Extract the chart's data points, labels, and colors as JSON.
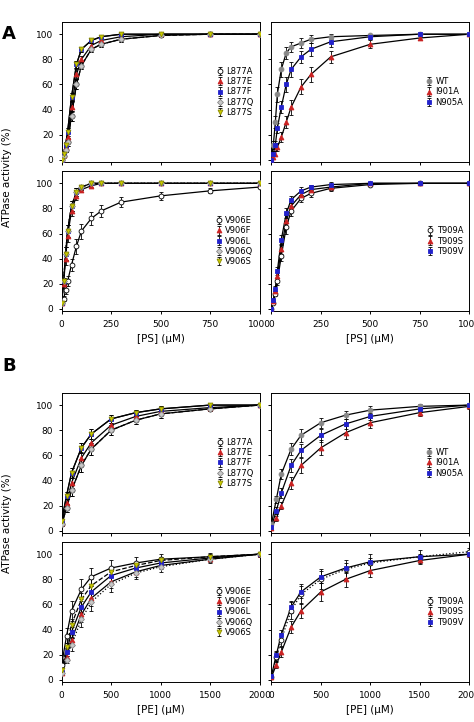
{
  "xlabel_PS": "[PS] (μM)",
  "xlabel_PE": "[PE] (μM)",
  "ylabel": "ATPase activity (%)",
  "xlim_PS": [
    0,
    1000
  ],
  "xlim_PE": [
    0,
    2000
  ],
  "ylim": [
    -2,
    110
  ],
  "yticks": [
    0,
    20,
    40,
    60,
    80,
    100
  ],
  "PS_x": [
    0,
    10,
    20,
    30,
    50,
    75,
    100,
    150,
    200,
    300,
    500,
    750,
    1000
  ],
  "PE_x": [
    0,
    50,
    100,
    200,
    300,
    500,
    750,
    1000,
    1500,
    2000
  ],
  "A_top_left": {
    "label": [
      "L877A",
      "L877E",
      "L877F",
      "L877Q",
      "L877S"
    ],
    "markers": [
      "o",
      "^",
      "s",
      "D",
      "v"
    ],
    "facecolors": [
      "white",
      "#cc2222",
      "#2222cc",
      "#c8c8c8",
      "#cccc00"
    ],
    "edgecolors": [
      "black",
      "#cc2222",
      "#2222cc",
      "#888888",
      "#888800"
    ],
    "linestyles": [
      "-",
      "-",
      "-",
      "--",
      "-"
    ],
    "data": [
      [
        0,
        3,
        8,
        14,
        35,
        60,
        75,
        88,
        92,
        96,
        99,
        100,
        100
      ],
      [
        0,
        4,
        10,
        18,
        42,
        68,
        80,
        91,
        95,
        98,
        100,
        100,
        100
      ],
      [
        0,
        5,
        12,
        22,
        50,
        76,
        88,
        95,
        98,
        100,
        100,
        100,
        100
      ],
      [
        0,
        3,
        8,
        14,
        35,
        60,
        75,
        88,
        92,
        96,
        99,
        100,
        100
      ],
      [
        0,
        5,
        12,
        22,
        50,
        76,
        88,
        95,
        98,
        100,
        100,
        100,
        100
      ]
    ],
    "yerr": [
      [
        0,
        1,
        2,
        3,
        4,
        4,
        3,
        2,
        2,
        2,
        1,
        1,
        1
      ],
      [
        0,
        1,
        2,
        3,
        4,
        4,
        3,
        2,
        2,
        2,
        1,
        1,
        1
      ],
      [
        0,
        1,
        2,
        3,
        3,
        3,
        2,
        2,
        1,
        1,
        1,
        1,
        1
      ],
      [
        0,
        1,
        2,
        3,
        4,
        4,
        3,
        2,
        2,
        2,
        1,
        1,
        1
      ],
      [
        0,
        1,
        2,
        3,
        3,
        3,
        2,
        2,
        1,
        1,
        1,
        1,
        1
      ]
    ]
  },
  "A_top_right": {
    "label": [
      "WT",
      "I901A",
      "N905A"
    ],
    "markers": [
      "o",
      "^",
      "s"
    ],
    "facecolors": [
      "#888888",
      "#cc2222",
      "#2222cc"
    ],
    "edgecolors": [
      "#888888",
      "#cc2222",
      "#2222cc"
    ],
    "linestyles": [
      "-",
      "-",
      "-"
    ],
    "data": [
      [
        0,
        12,
        30,
        52,
        72,
        85,
        90,
        93,
        96,
        98,
        99,
        100,
        100
      ],
      [
        0,
        2,
        5,
        10,
        18,
        30,
        42,
        58,
        68,
        82,
        92,
        97,
        100
      ],
      [
        0,
        5,
        12,
        25,
        42,
        60,
        72,
        82,
        88,
        94,
        98,
        100,
        100
      ]
    ],
    "yerr": [
      [
        0,
        3,
        5,
        6,
        6,
        5,
        4,
        4,
        3,
        2,
        1,
        1,
        1
      ],
      [
        0,
        1,
        2,
        3,
        4,
        5,
        6,
        6,
        6,
        5,
        3,
        2,
        1
      ],
      [
        0,
        2,
        3,
        4,
        5,
        6,
        6,
        5,
        5,
        4,
        2,
        1,
        1
      ]
    ]
  },
  "A_bot_left": {
    "label": [
      "V906E",
      "V906F",
      "V906L",
      "V906Q",
      "V906S"
    ],
    "markers": [
      "o",
      "^",
      "s",
      "D",
      "v"
    ],
    "facecolors": [
      "white",
      "#cc2222",
      "#2222cc",
      "#c8c8c8",
      "#cccc00"
    ],
    "edgecolors": [
      "black",
      "#cc2222",
      "#2222cc",
      "#888888",
      "#888800"
    ],
    "linestyles": [
      "-",
      "-",
      "-",
      ":",
      "--"
    ],
    "data": [
      [
        5,
        8,
        15,
        22,
        35,
        50,
        62,
        72,
        78,
        85,
        90,
        94,
        97
      ],
      [
        5,
        20,
        40,
        58,
        78,
        90,
        95,
        98,
        100,
        100,
        100,
        100,
        100
      ],
      [
        5,
        22,
        44,
        62,
        82,
        93,
        97,
        100,
        100,
        100,
        100,
        100,
        100
      ],
      [
        5,
        22,
        44,
        62,
        82,
        93,
        97,
        100,
        100,
        100,
        100,
        100,
        100
      ],
      [
        5,
        22,
        44,
        62,
        82,
        93,
        97,
        100,
        100,
        100,
        100,
        100,
        100
      ]
    ],
    "yerr": [
      [
        1,
        2,
        3,
        4,
        5,
        6,
        6,
        5,
        5,
        4,
        3,
        2,
        1
      ],
      [
        1,
        3,
        5,
        5,
        4,
        3,
        2,
        1,
        1,
        1,
        1,
        1,
        1
      ],
      [
        1,
        3,
        5,
        5,
        4,
        3,
        2,
        1,
        1,
        1,
        1,
        1,
        1
      ],
      [
        1,
        3,
        5,
        5,
        4,
        3,
        2,
        1,
        1,
        1,
        1,
        1,
        1
      ],
      [
        1,
        3,
        5,
        5,
        4,
        3,
        2,
        1,
        1,
        1,
        1,
        1,
        1
      ]
    ]
  },
  "A_bot_right": {
    "label": [
      "T909A",
      "T909S",
      "T909V"
    ],
    "markers": [
      "o",
      "^",
      "s"
    ],
    "facecolors": [
      "white",
      "#cc2222",
      "#2222cc"
    ],
    "edgecolors": [
      "black",
      "#cc2222",
      "#2222cc"
    ],
    "linestyles": [
      "-",
      "-",
      "-"
    ],
    "data": [
      [
        0,
        5,
        12,
        22,
        42,
        65,
        78,
        88,
        92,
        96,
        99,
        100,
        100
      ],
      [
        0,
        6,
        14,
        26,
        48,
        70,
        82,
        91,
        95,
        97,
        100,
        100,
        100
      ],
      [
        0,
        7,
        16,
        30,
        55,
        76,
        87,
        94,
        97,
        99,
        100,
        100,
        100
      ]
    ],
    "yerr": [
      [
        0,
        1,
        2,
        3,
        4,
        5,
        4,
        3,
        3,
        2,
        1,
        1,
        1
      ],
      [
        0,
        1,
        2,
        3,
        4,
        5,
        4,
        3,
        3,
        2,
        1,
        1,
        1
      ],
      [
        0,
        1,
        2,
        3,
        4,
        4,
        3,
        3,
        2,
        2,
        1,
        1,
        1
      ]
    ]
  },
  "B_top_left": {
    "label": [
      "L877A",
      "L877E",
      "L877F",
      "L877Q",
      "L877S"
    ],
    "markers": [
      "o",
      "^",
      "s",
      "D",
      "v"
    ],
    "facecolors": [
      "white",
      "#cc2222",
      "#2222cc",
      "#c8c8c8",
      "#cccc00"
    ],
    "edgecolors": [
      "black",
      "#cc2222",
      "#2222cc",
      "#888888",
      "#888800"
    ],
    "linestyles": [
      "-",
      "-",
      "-",
      "--",
      "-"
    ],
    "data": [
      [
        5,
        18,
        32,
        52,
        65,
        80,
        88,
        93,
        97,
        100
      ],
      [
        6,
        22,
        38,
        58,
        70,
        84,
        91,
        95,
        98,
        100
      ],
      [
        8,
        28,
        46,
        66,
        77,
        89,
        94,
        97,
        100,
        100
      ],
      [
        5,
        18,
        32,
        52,
        65,
        80,
        88,
        93,
        97,
        100
      ],
      [
        8,
        28,
        46,
        66,
        77,
        89,
        94,
        97,
        100,
        100
      ]
    ],
    "yerr": [
      [
        1,
        3,
        4,
        5,
        5,
        4,
        3,
        3,
        2,
        1
      ],
      [
        1,
        3,
        4,
        5,
        5,
        4,
        3,
        3,
        2,
        1
      ],
      [
        1,
        3,
        4,
        4,
        4,
        3,
        2,
        2,
        1,
        1
      ],
      [
        1,
        3,
        4,
        5,
        5,
        4,
        3,
        3,
        2,
        1
      ],
      [
        1,
        3,
        4,
        4,
        4,
        3,
        2,
        2,
        1,
        1
      ]
    ]
  },
  "B_top_right": {
    "label": [
      "WT",
      "I901A",
      "N905A"
    ],
    "markers": [
      "o",
      "^",
      "s"
    ],
    "facecolors": [
      "#888888",
      "#cc2222",
      "#2222cc"
    ],
    "edgecolors": [
      "#888888",
      "#cc2222",
      "#2222cc"
    ],
    "linestyles": [
      "-",
      "-",
      "-"
    ],
    "data": [
      [
        5,
        25,
        45,
        65,
        76,
        86,
        92,
        96,
        99,
        100
      ],
      [
        2,
        10,
        20,
        38,
        52,
        66,
        78,
        86,
        94,
        99
      ],
      [
        3,
        16,
        30,
        52,
        64,
        76,
        85,
        91,
        97,
        100
      ]
    ],
    "yerr": [
      [
        1,
        3,
        4,
        5,
        5,
        4,
        3,
        3,
        2,
        1
      ],
      [
        1,
        2,
        3,
        5,
        6,
        6,
        5,
        4,
        3,
        2
      ],
      [
        1,
        3,
        4,
        5,
        5,
        5,
        4,
        3,
        2,
        1
      ]
    ]
  },
  "B_bot_left": {
    "label": [
      "V906E",
      "V906F",
      "V906L",
      "V906Q",
      "V906S"
    ],
    "markers": [
      "o",
      "^",
      "s",
      "D",
      "v"
    ],
    "facecolors": [
      "white",
      "#cc2222",
      "#2222cc",
      "#c8c8c8",
      "#cccc00"
    ],
    "edgecolors": [
      "black",
      "#cc2222",
      "#2222cc",
      "#888888",
      "#888800"
    ],
    "linestyles": [
      "-",
      "-",
      "-",
      ":",
      "--"
    ],
    "data": [
      [
        12,
        35,
        55,
        72,
        82,
        89,
        93,
        96,
        98,
        100
      ],
      [
        5,
        18,
        32,
        52,
        65,
        78,
        86,
        91,
        96,
        100
      ],
      [
        6,
        22,
        38,
        58,
        70,
        83,
        89,
        93,
        97,
        100
      ],
      [
        5,
        16,
        28,
        48,
        62,
        76,
        85,
        90,
        96,
        100
      ],
      [
        8,
        26,
        44,
        64,
        75,
        86,
        91,
        95,
        98,
        100
      ]
    ],
    "yerr": [
      [
        2,
        6,
        8,
        8,
        7,
        6,
        5,
        4,
        3,
        2
      ],
      [
        1,
        3,
        5,
        6,
        6,
        5,
        4,
        3,
        2,
        1
      ],
      [
        1,
        3,
        4,
        5,
        5,
        4,
        3,
        3,
        2,
        1
      ],
      [
        1,
        3,
        5,
        6,
        7,
        6,
        5,
        4,
        3,
        2
      ],
      [
        1,
        3,
        4,
        5,
        5,
        4,
        3,
        3,
        2,
        1
      ]
    ]
  },
  "B_bot_right": {
    "label": [
      "T909A",
      "T909S",
      "T909V"
    ],
    "markers": [
      "o",
      "^",
      "s"
    ],
    "facecolors": [
      "white",
      "#cc2222",
      "#2222cc"
    ],
    "edgecolors": [
      "black",
      "#cc2222",
      "#2222cc"
    ],
    "linestyles": [
      ":",
      "-",
      "-"
    ],
    "data": [
      [
        2,
        18,
        32,
        55,
        68,
        80,
        88,
        93,
        98,
        102
      ],
      [
        2,
        12,
        22,
        42,
        55,
        70,
        80,
        87,
        95,
        100
      ],
      [
        3,
        20,
        36,
        58,
        70,
        82,
        89,
        94,
        98,
        100
      ]
    ],
    "yerr": [
      [
        1,
        4,
        5,
        7,
        8,
        8,
        7,
        7,
        5,
        3
      ],
      [
        1,
        3,
        4,
        5,
        6,
        7,
        6,
        5,
        3,
        2
      ],
      [
        1,
        3,
        4,
        5,
        5,
        5,
        4,
        3,
        2,
        1
      ]
    ]
  }
}
